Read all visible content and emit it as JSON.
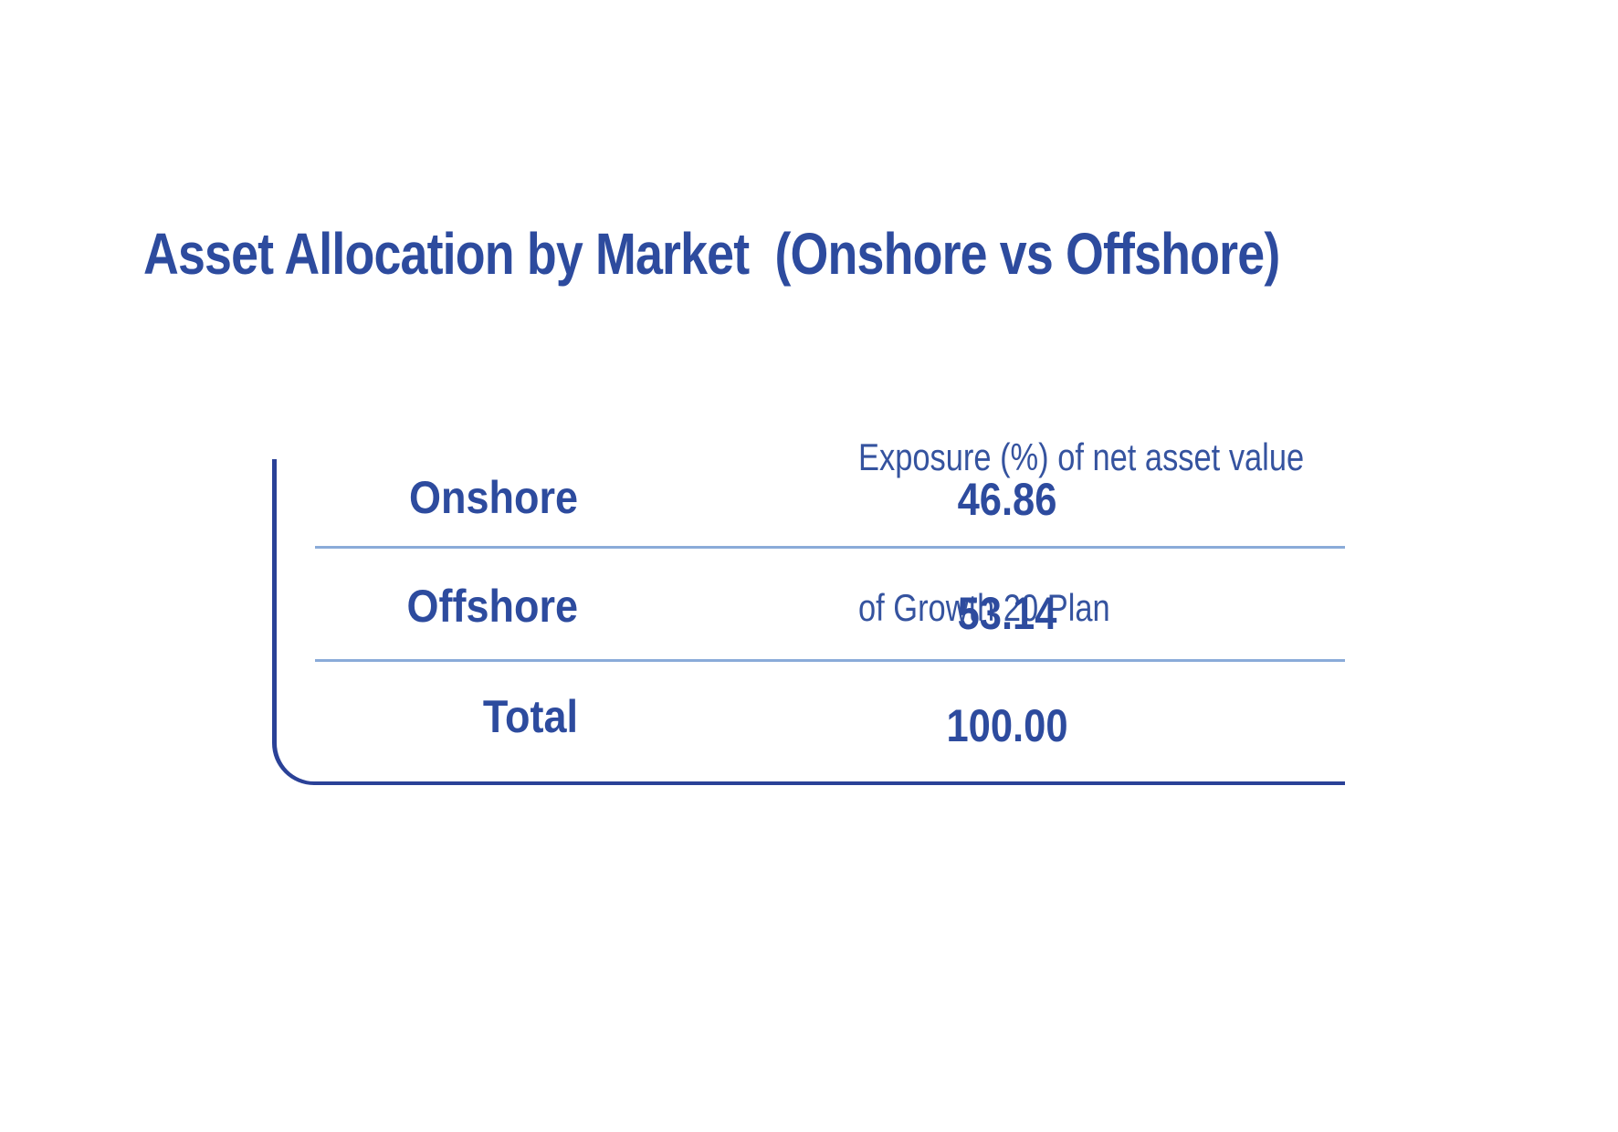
{
  "title": "Asset Allocation by Market  (Onshore vs Offshore)",
  "table": {
    "value_column_header": {
      "line1": "Exposure (%) of net asset value",
      "line2": "of Growth 20 Plan"
    },
    "rows": [
      {
        "label": "Onshore",
        "value": "46.86"
      },
      {
        "label": "Offshore",
        "value": "53.14"
      },
      {
        "label": "Total",
        "value": "100.00"
      }
    ]
  },
  "colors": {
    "heading_text": "#2d4b9e",
    "header_text": "#35539f",
    "cell_text": "#2d4b9e",
    "frame_border": "#2a4197",
    "row_divider": "#8aabd9",
    "background": "#ffffff"
  }
}
